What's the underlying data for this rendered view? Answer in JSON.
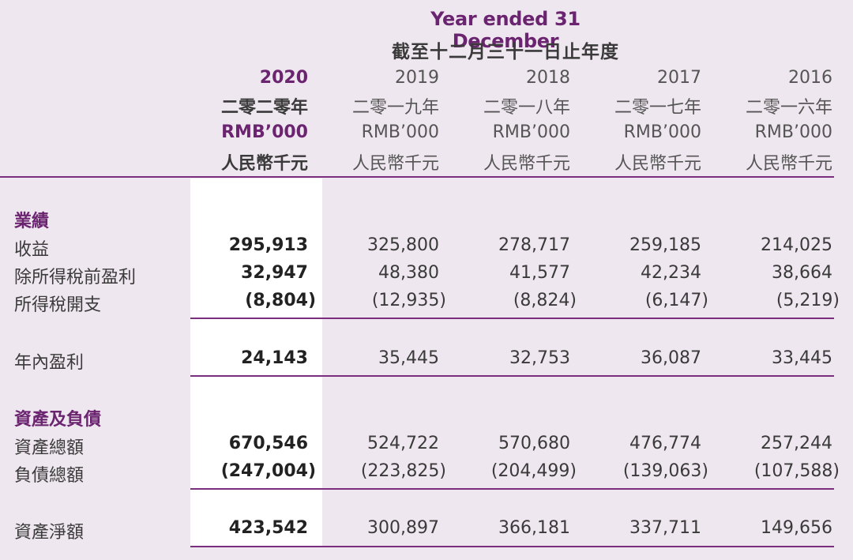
{
  "header": {
    "title_en": "Year ended 31 December",
    "title_zh": "截至十二月三十一日止年度"
  },
  "columns": [
    {
      "year": "2020",
      "year_zh": "二零二零年",
      "unit": "RMB’000",
      "unit_zh": "人民幣千元"
    },
    {
      "year": "2019",
      "year_zh": "二零一九年",
      "unit": "RMB’000",
      "unit_zh": "人民幣千元"
    },
    {
      "year": "2018",
      "year_zh": "二零一八年",
      "unit": "RMB’000",
      "unit_zh": "人民幣千元"
    },
    {
      "year": "2017",
      "year_zh": "二零一七年",
      "unit": "RMB’000",
      "unit_zh": "人民幣千元"
    },
    {
      "year": "2016",
      "year_zh": "二零一六年",
      "unit": "RMB’000",
      "unit_zh": "人民幣千元"
    }
  ],
  "sections": {
    "results": "業績",
    "assets_liabilities": "資產及負債"
  },
  "rows": {
    "revenue": {
      "label": "收益",
      "values": [
        "295,913",
        "325,800",
        "278,717",
        "259,185",
        "214,025"
      ]
    },
    "profit_before_tax": {
      "label": "除所得稅前盈利",
      "values": [
        "32,947",
        "48,380",
        "41,577",
        "42,234",
        "38,664"
      ]
    },
    "income_tax": {
      "label": "所得稅開支",
      "values": [
        "(8,804)",
        "(12,935)",
        "(8,824)",
        "(6,147)",
        "(5,219)"
      ]
    },
    "profit_for_year": {
      "label": "年內盈利",
      "values": [
        "24,143",
        "35,445",
        "32,753",
        "36,087",
        "33,445"
      ]
    },
    "total_assets": {
      "label": "資產總額",
      "values": [
        "670,546",
        "524,722",
        "570,680",
        "476,774",
        "257,244"
      ]
    },
    "total_liabilities": {
      "label": "負債總額",
      "values": [
        "(247,004)",
        "(223,825)",
        "(204,499)",
        "(139,063)",
        "(107,588)"
      ]
    },
    "net_assets": {
      "label": "資產淨額",
      "values": [
        "423,542",
        "300,897",
        "366,181",
        "337,711",
        "149,656"
      ]
    }
  }
}
